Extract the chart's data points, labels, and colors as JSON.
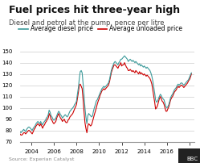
{
  "title": "Fuel prices hit three-year high",
  "subtitle": "Diesel and petrol at the pump, pence per litre",
  "legend": [
    "Average diesel price",
    "Average unloaded price"
  ],
  "diesel_color": "#3d9b9b",
  "unleaded_color": "#cc0000",
  "source_text": "Source: Experian Catalyst",
  "ylim": [
    70,
    155
  ],
  "yticks": [
    70,
    80,
    90,
    100,
    110,
    120,
    130,
    140,
    150
  ],
  "xtick_years": [
    2004,
    2006,
    2008,
    2010,
    2012,
    2014,
    2016,
    2018
  ],
  "background_color": "#ffffff",
  "grid_color": "#cccccc",
  "title_fontsize": 9,
  "subtitle_fontsize": 6,
  "legend_fontsize": 5.5,
  "tick_fontsize": 5,
  "source_fontsize": 4.5,
  "diesel_data": [
    [
      2003.0,
      79
    ],
    [
      2003.08,
      78
    ],
    [
      2003.17,
      79
    ],
    [
      2003.25,
      80
    ],
    [
      2003.33,
      81
    ],
    [
      2003.42,
      80
    ],
    [
      2003.5,
      79
    ],
    [
      2003.58,
      81
    ],
    [
      2003.67,
      82
    ],
    [
      2003.75,
      83
    ],
    [
      2003.83,
      83
    ],
    [
      2003.92,
      82
    ],
    [
      2004.0,
      81
    ],
    [
      2004.08,
      80
    ],
    [
      2004.17,
      82
    ],
    [
      2004.25,
      83
    ],
    [
      2004.33,
      84
    ],
    [
      2004.42,
      86
    ],
    [
      2004.5,
      87
    ],
    [
      2004.58,
      88
    ],
    [
      2004.67,
      87
    ],
    [
      2004.75,
      86
    ],
    [
      2004.83,
      88
    ],
    [
      2004.92,
      86
    ],
    [
      2005.0,
      85
    ],
    [
      2005.08,
      87
    ],
    [
      2005.17,
      88
    ],
    [
      2005.25,
      89
    ],
    [
      2005.33,
      91
    ],
    [
      2005.42,
      92
    ],
    [
      2005.5,
      94
    ],
    [
      2005.58,
      98
    ],
    [
      2005.67,
      96
    ],
    [
      2005.75,
      93
    ],
    [
      2005.83,
      92
    ],
    [
      2005.92,
      90
    ],
    [
      2006.0,
      89
    ],
    [
      2006.08,
      90
    ],
    [
      2006.17,
      91
    ],
    [
      2006.25,
      93
    ],
    [
      2006.33,
      95
    ],
    [
      2006.42,
      97
    ],
    [
      2006.5,
      96
    ],
    [
      2006.58,
      94
    ],
    [
      2006.67,
      93
    ],
    [
      2006.75,
      91
    ],
    [
      2006.83,
      92
    ],
    [
      2006.92,
      93
    ],
    [
      2007.0,
      94
    ],
    [
      2007.08,
      93
    ],
    [
      2007.17,
      92
    ],
    [
      2007.25,
      93
    ],
    [
      2007.33,
      95
    ],
    [
      2007.42,
      97
    ],
    [
      2007.5,
      98
    ],
    [
      2007.58,
      99
    ],
    [
      2007.67,
      100
    ],
    [
      2007.75,
      101
    ],
    [
      2007.83,
      103
    ],
    [
      2007.92,
      104
    ],
    [
      2008.0,
      106
    ],
    [
      2008.08,
      112
    ],
    [
      2008.17,
      118
    ],
    [
      2008.25,
      126
    ],
    [
      2008.33,
      132
    ],
    [
      2008.42,
      133
    ],
    [
      2008.5,
      131
    ],
    [
      2008.58,
      122
    ],
    [
      2008.67,
      110
    ],
    [
      2008.75,
      100
    ],
    [
      2008.83,
      92
    ],
    [
      2008.92,
      86
    ],
    [
      2009.0,
      93
    ],
    [
      2009.08,
      95
    ],
    [
      2009.17,
      94
    ],
    [
      2009.25,
      93
    ],
    [
      2009.33,
      92
    ],
    [
      2009.42,
      93
    ],
    [
      2009.5,
      97
    ],
    [
      2009.58,
      100
    ],
    [
      2009.67,
      103
    ],
    [
      2009.75,
      106
    ],
    [
      2009.83,
      107
    ],
    [
      2009.92,
      109
    ],
    [
      2010.0,
      111
    ],
    [
      2010.08,
      113
    ],
    [
      2010.17,
      115
    ],
    [
      2010.25,
      117
    ],
    [
      2010.33,
      118
    ],
    [
      2010.42,
      119
    ],
    [
      2010.5,
      118
    ],
    [
      2010.58,
      119
    ],
    [
      2010.67,
      120
    ],
    [
      2010.75,
      121
    ],
    [
      2010.83,
      122
    ],
    [
      2010.92,
      125
    ],
    [
      2011.0,
      129
    ],
    [
      2011.08,
      133
    ],
    [
      2011.17,
      136
    ],
    [
      2011.25,
      138
    ],
    [
      2011.33,
      140
    ],
    [
      2011.42,
      141
    ],
    [
      2011.5,
      140
    ],
    [
      2011.58,
      139
    ],
    [
      2011.67,
      138
    ],
    [
      2011.75,
      140
    ],
    [
      2011.83,
      141
    ],
    [
      2011.92,
      143
    ],
    [
      2012.0,
      143
    ],
    [
      2012.08,
      144
    ],
    [
      2012.17,
      145
    ],
    [
      2012.25,
      146
    ],
    [
      2012.33,
      145
    ],
    [
      2012.42,
      144
    ],
    [
      2012.5,
      143
    ],
    [
      2012.58,
      141
    ],
    [
      2012.67,
      142
    ],
    [
      2012.75,
      143
    ],
    [
      2012.83,
      142
    ],
    [
      2012.92,
      141
    ],
    [
      2013.0,
      142
    ],
    [
      2013.08,
      141
    ],
    [
      2013.17,
      140
    ],
    [
      2013.25,
      141
    ],
    [
      2013.33,
      140
    ],
    [
      2013.42,
      139
    ],
    [
      2013.5,
      138
    ],
    [
      2013.58,
      139
    ],
    [
      2013.67,
      137
    ],
    [
      2013.75,
      138
    ],
    [
      2013.83,
      137
    ],
    [
      2013.92,
      136
    ],
    [
      2014.0,
      137
    ],
    [
      2014.08,
      136
    ],
    [
      2014.17,
      135
    ],
    [
      2014.25,
      136
    ],
    [
      2014.33,
      135
    ],
    [
      2014.42,
      134
    ],
    [
      2014.5,
      133
    ],
    [
      2014.58,
      131
    ],
    [
      2014.67,
      128
    ],
    [
      2014.75,
      124
    ],
    [
      2014.83,
      119
    ],
    [
      2014.92,
      113
    ],
    [
      2015.0,
      107
    ],
    [
      2015.08,
      105
    ],
    [
      2015.17,
      106
    ],
    [
      2015.25,
      108
    ],
    [
      2015.33,
      110
    ],
    [
      2015.42,
      112
    ],
    [
      2015.5,
      111
    ],
    [
      2015.58,
      109
    ],
    [
      2015.67,
      108
    ],
    [
      2015.75,
      107
    ],
    [
      2015.83,
      104
    ],
    [
      2015.92,
      101
    ],
    [
      2016.0,
      100
    ],
    [
      2016.08,
      101
    ],
    [
      2016.17,
      103
    ],
    [
      2016.25,
      106
    ],
    [
      2016.33,
      109
    ],
    [
      2016.42,
      111
    ],
    [
      2016.5,
      112
    ],
    [
      2016.58,
      114
    ],
    [
      2016.67,
      116
    ],
    [
      2016.75,
      117
    ],
    [
      2016.83,
      118
    ],
    [
      2016.92,
      120
    ],
    [
      2017.0,
      121
    ],
    [
      2017.08,
      120
    ],
    [
      2017.17,
      121
    ],
    [
      2017.25,
      122
    ],
    [
      2017.33,
      122
    ],
    [
      2017.42,
      121
    ],
    [
      2017.5,
      120
    ],
    [
      2017.58,
      121
    ],
    [
      2017.67,
      122
    ],
    [
      2017.75,
      123
    ],
    [
      2017.83,
      124
    ],
    [
      2017.92,
      125
    ],
    [
      2018.0,
      127
    ],
    [
      2018.08,
      129
    ],
    [
      2018.17,
      131
    ]
  ],
  "unleaded_data": [
    [
      2003.0,
      77
    ],
    [
      2003.08,
      76
    ],
    [
      2003.17,
      76
    ],
    [
      2003.25,
      77
    ],
    [
      2003.33,
      78
    ],
    [
      2003.42,
      78
    ],
    [
      2003.5,
      77
    ],
    [
      2003.58,
      78
    ],
    [
      2003.67,
      79
    ],
    [
      2003.75,
      80
    ],
    [
      2003.83,
      80
    ],
    [
      2003.92,
      79
    ],
    [
      2004.0,
      78
    ],
    [
      2004.08,
      77
    ],
    [
      2004.17,
      79
    ],
    [
      2004.25,
      81
    ],
    [
      2004.33,
      82
    ],
    [
      2004.42,
      84
    ],
    [
      2004.5,
      85
    ],
    [
      2004.58,
      86
    ],
    [
      2004.67,
      85
    ],
    [
      2004.75,
      84
    ],
    [
      2004.83,
      86
    ],
    [
      2004.92,
      84
    ],
    [
      2005.0,
      82
    ],
    [
      2005.08,
      84
    ],
    [
      2005.17,
      85
    ],
    [
      2005.25,
      87
    ],
    [
      2005.33,
      88
    ],
    [
      2005.42,
      90
    ],
    [
      2005.5,
      91
    ],
    [
      2005.58,
      95
    ],
    [
      2005.67,
      93
    ],
    [
      2005.75,
      90
    ],
    [
      2005.83,
      89
    ],
    [
      2005.92,
      87
    ],
    [
      2006.0,
      86
    ],
    [
      2006.08,
      87
    ],
    [
      2006.17,
      88
    ],
    [
      2006.25,
      91
    ],
    [
      2006.33,
      93
    ],
    [
      2006.42,
      95
    ],
    [
      2006.5,
      93
    ],
    [
      2006.58,
      91
    ],
    [
      2006.67,
      90
    ],
    [
      2006.75,
      88
    ],
    [
      2006.83,
      89
    ],
    [
      2006.92,
      90
    ],
    [
      2007.0,
      88
    ],
    [
      2007.08,
      87
    ],
    [
      2007.17,
      87
    ],
    [
      2007.25,
      89
    ],
    [
      2007.33,
      90
    ],
    [
      2007.42,
      92
    ],
    [
      2007.5,
      93
    ],
    [
      2007.58,
      94
    ],
    [
      2007.67,
      95
    ],
    [
      2007.75,
      97
    ],
    [
      2007.83,
      99
    ],
    [
      2007.92,
      101
    ],
    [
      2008.0,
      103
    ],
    [
      2008.08,
      108
    ],
    [
      2008.17,
      114
    ],
    [
      2008.25,
      120
    ],
    [
      2008.33,
      121
    ],
    [
      2008.42,
      119
    ],
    [
      2008.5,
      117
    ],
    [
      2008.58,
      108
    ],
    [
      2008.67,
      96
    ],
    [
      2008.75,
      87
    ],
    [
      2008.83,
      82
    ],
    [
      2008.92,
      78
    ],
    [
      2009.0,
      84
    ],
    [
      2009.08,
      86
    ],
    [
      2009.17,
      85
    ],
    [
      2009.25,
      84
    ],
    [
      2009.33,
      85
    ],
    [
      2009.42,
      88
    ],
    [
      2009.5,
      91
    ],
    [
      2009.58,
      94
    ],
    [
      2009.67,
      97
    ],
    [
      2009.75,
      100
    ],
    [
      2009.83,
      103
    ],
    [
      2009.92,
      106
    ],
    [
      2010.0,
      108
    ],
    [
      2010.08,
      111
    ],
    [
      2010.17,
      113
    ],
    [
      2010.25,
      115
    ],
    [
      2010.33,
      116
    ],
    [
      2010.42,
      117
    ],
    [
      2010.5,
      116
    ],
    [
      2010.58,
      117
    ],
    [
      2010.67,
      118
    ],
    [
      2010.75,
      119
    ],
    [
      2010.83,
      120
    ],
    [
      2010.92,
      123
    ],
    [
      2011.0,
      127
    ],
    [
      2011.08,
      131
    ],
    [
      2011.17,
      134
    ],
    [
      2011.25,
      136
    ],
    [
      2011.33,
      138
    ],
    [
      2011.42,
      138
    ],
    [
      2011.5,
      137
    ],
    [
      2011.58,
      136
    ],
    [
      2011.67,
      135
    ],
    [
      2011.75,
      137
    ],
    [
      2011.83,
      138
    ],
    [
      2011.92,
      140
    ],
    [
      2012.0,
      137
    ],
    [
      2012.08,
      138
    ],
    [
      2012.17,
      138
    ],
    [
      2012.25,
      140
    ],
    [
      2012.33,
      138
    ],
    [
      2012.42,
      136
    ],
    [
      2012.5,
      135
    ],
    [
      2012.58,
      133
    ],
    [
      2012.67,
      133
    ],
    [
      2012.75,
      134
    ],
    [
      2012.83,
      133
    ],
    [
      2012.92,
      132
    ],
    [
      2013.0,
      133
    ],
    [
      2013.08,
      132
    ],
    [
      2013.17,
      131
    ],
    [
      2013.25,
      133
    ],
    [
      2013.33,
      132
    ],
    [
      2013.42,
      131
    ],
    [
      2013.5,
      130
    ],
    [
      2013.58,
      132
    ],
    [
      2013.67,
      130
    ],
    [
      2013.75,
      131
    ],
    [
      2013.83,
      130
    ],
    [
      2013.92,
      129
    ],
    [
      2014.0,
      130
    ],
    [
      2014.08,
      129
    ],
    [
      2014.17,
      128
    ],
    [
      2014.25,
      129
    ],
    [
      2014.33,
      128
    ],
    [
      2014.42,
      127
    ],
    [
      2014.5,
      126
    ],
    [
      2014.58,
      124
    ],
    [
      2014.67,
      121
    ],
    [
      2014.75,
      116
    ],
    [
      2014.83,
      111
    ],
    [
      2014.92,
      105
    ],
    [
      2015.0,
      99
    ],
    [
      2015.08,
      100
    ],
    [
      2015.17,
      102
    ],
    [
      2015.25,
      105
    ],
    [
      2015.33,
      108
    ],
    [
      2015.42,
      110
    ],
    [
      2015.5,
      108
    ],
    [
      2015.58,
      106
    ],
    [
      2015.67,
      105
    ],
    [
      2015.75,
      103
    ],
    [
      2015.83,
      100
    ],
    [
      2015.92,
      97
    ],
    [
      2016.0,
      97
    ],
    [
      2016.08,
      99
    ],
    [
      2016.17,
      101
    ],
    [
      2016.25,
      104
    ],
    [
      2016.33,
      107
    ],
    [
      2016.42,
      109
    ],
    [
      2016.5,
      110
    ],
    [
      2016.58,
      112
    ],
    [
      2016.67,
      114
    ],
    [
      2016.75,
      115
    ],
    [
      2016.83,
      116
    ],
    [
      2016.92,
      118
    ],
    [
      2017.0,
      119
    ],
    [
      2017.08,
      118
    ],
    [
      2017.17,
      119
    ],
    [
      2017.25,
      120
    ],
    [
      2017.33,
      120
    ],
    [
      2017.42,
      119
    ],
    [
      2017.5,
      118
    ],
    [
      2017.58,
      119
    ],
    [
      2017.67,
      120
    ],
    [
      2017.75,
      121
    ],
    [
      2017.83,
      122
    ],
    [
      2017.92,
      124
    ],
    [
      2018.0,
      125
    ],
    [
      2018.08,
      127
    ],
    [
      2018.17,
      130
    ]
  ]
}
